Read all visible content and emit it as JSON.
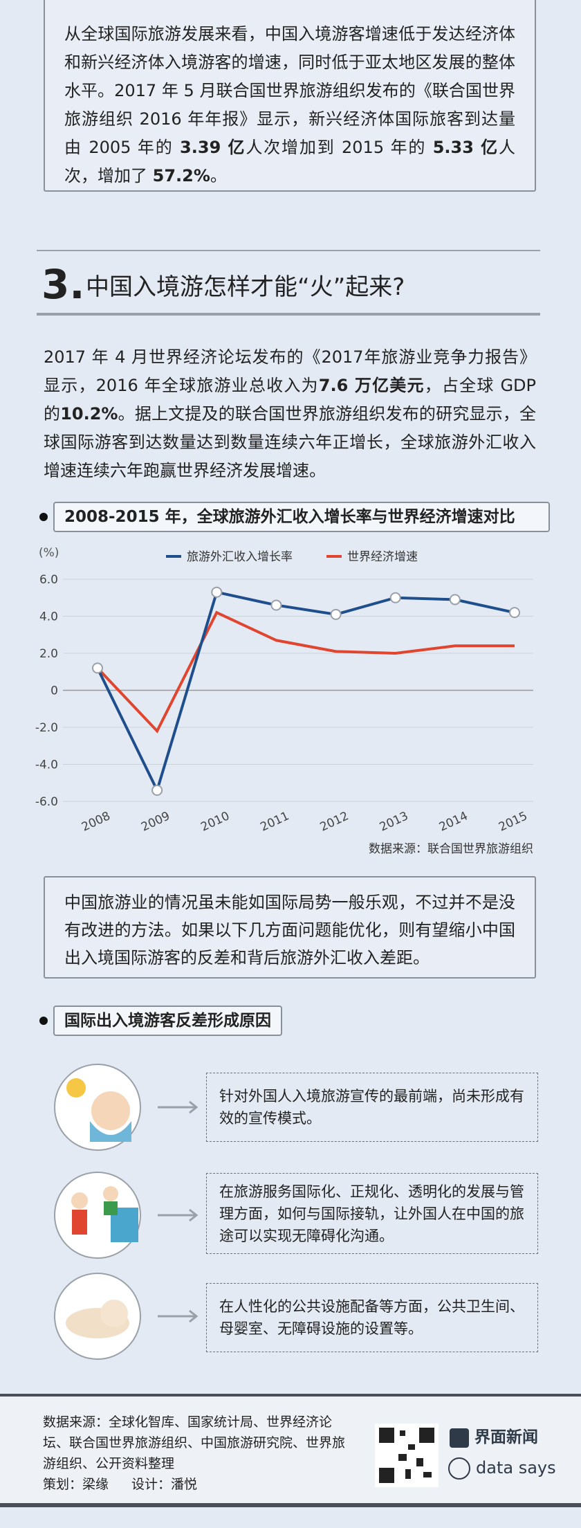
{
  "intro_box": {
    "segments": [
      {
        "text": "从全球国际旅游发展来看，中国入境游客增速低于发达经济体和新兴经济体入境游客的增速，同时低于亚太地区发展的整体水平。2017 年 5 月联合国世界旅游组织发布的《联合国世界旅游组织 2016 年年报》显示，新兴经济体国际旅客到达量由 2005 年的 ",
        "bold": false
      },
      {
        "text": "3.39 亿",
        "bold": true
      },
      {
        "text": "人次增加到 2015 年的 ",
        "bold": false
      },
      {
        "text": "5.33 亿",
        "bold": true
      },
      {
        "text": "人次，增加了 ",
        "bold": false
      },
      {
        "text": "57.2%",
        "bold": true
      },
      {
        "text": "。",
        "bold": false
      }
    ]
  },
  "section": {
    "number": "3.",
    "title": "中国入境游怎样才能“火”起来?"
  },
  "paragraph": {
    "segments": [
      {
        "text": "2017 年 4 月世界经济论坛发布的《2017年旅游业竞争力报告》显示，2016 年全球旅游业总收入为",
        "bold": false
      },
      {
        "text": "7.6 万亿美元",
        "bold": true
      },
      {
        "text": "，占全球 GDP 的",
        "bold": false
      },
      {
        "text": "10.2%",
        "bold": true
      },
      {
        "text": "。据上文提及的联合国世界旅游组织发布的研究显示，全球国际游客到达数量达到数量连续六年正增长，全球旅游外汇收入增速连续六年跑赢世界经济发展增速。",
        "bold": false
      }
    ]
  },
  "chart_data": {
    "type": "line",
    "title": "2008-2015 年，全球旅游外汇收入增长率与世界经济增速对比",
    "y_label": "(%)",
    "categories": [
      "2008",
      "2009",
      "2010",
      "2011",
      "2012",
      "2013",
      "2014",
      "2015"
    ],
    "series": [
      {
        "name": "旅游外汇收入增长率",
        "color": "#1f4e8c",
        "markers": true,
        "values": [
          1.2,
          -5.4,
          5.3,
          4.6,
          4.1,
          5.0,
          4.9,
          4.2
        ]
      },
      {
        "name": "世界经济增速",
        "color": "#e0452f",
        "markers": false,
        "values": [
          1.2,
          -2.2,
          4.2,
          2.7,
          2.1,
          2.0,
          2.4,
          2.4
        ]
      }
    ],
    "ylim": [
      -6,
      6
    ],
    "yticks": [
      {
        "value": -6,
        "label": "-6.0"
      },
      {
        "value": -4,
        "label": "-4.0"
      },
      {
        "value": -2,
        "label": "-2.0"
      },
      0,
      {
        "value": 2,
        "label": "2.0"
      },
      {
        "value": 4,
        "label": "4.0"
      },
      {
        "value": 6,
        "label": "6.0"
      }
    ],
    "source": "数据来源：联合国世界旅游组织"
  },
  "note_box": {
    "text": "中国旅游业的情况虽未能如国际局势一般乐观，不过并不是没有改进的方法。如果以下几方面问题能优化，则有望缩小中国出入境国际游客的反差和背后旅游外汇收入差距。"
  },
  "reasons": {
    "title": "国际出入境游客反差形成原因",
    "items": [
      "针对外国人入境旅游宣传的最前端，尚未形成有效的宣传模式。",
      "在旅游服务国际化、正规化、透明化的发展与管理方面，如何与国际接轨，让外国人在中国的旅途可以实现无障碍化沟通。",
      "在人性化的公共设施配备等方面，公共卫生间、母婴室、无障碍设施的设置等。"
    ]
  },
  "footer": {
    "sources": "数据来源：全球化智库、国家统计局、世界经济论坛、联合国世界旅游组织、中国旅游研究院、世界旅游组织、公开资料整理",
    "planner": "策划：梁缘",
    "designer": "设计：潘悦",
    "brand": "界面新闻",
    "brand2": "data says"
  }
}
